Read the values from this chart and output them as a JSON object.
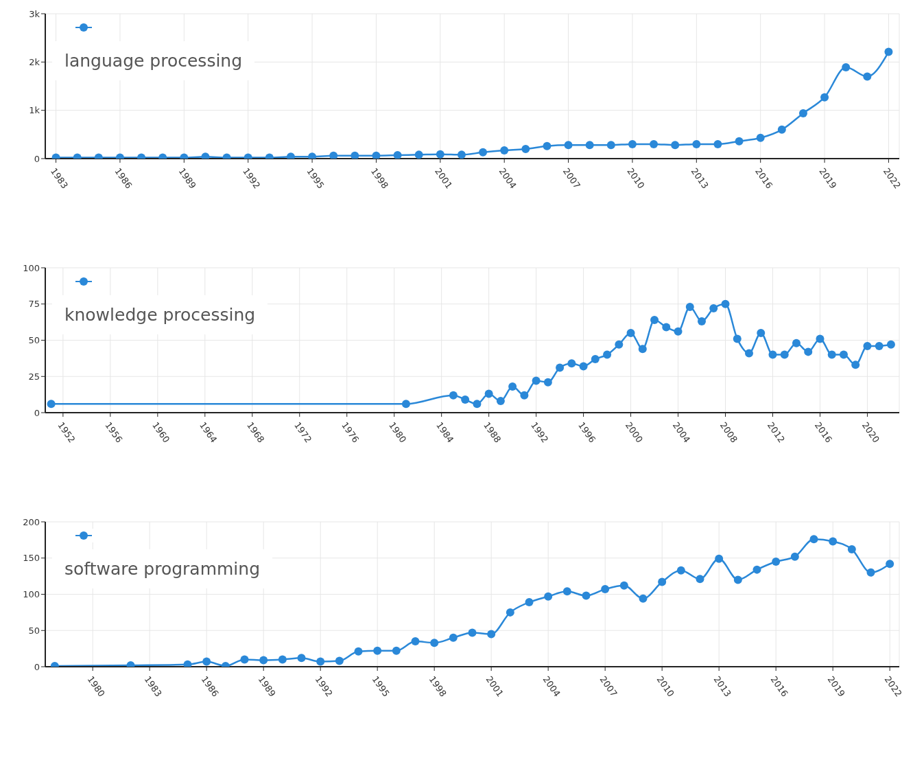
{
  "chart_data": [
    {
      "type": "line",
      "x": [
        1983,
        1984,
        1985,
        1986,
        1987,
        1988,
        1989,
        1990,
        1991,
        1992,
        1993,
        1994,
        1995,
        1996,
        1997,
        1998,
        1999,
        2000,
        2001,
        2002,
        2003,
        2004,
        2005,
        2006,
        2007,
        2008,
        2009,
        2010,
        2011,
        2012,
        2013,
        2014,
        2015,
        2016,
        2017,
        2018,
        2019,
        2020,
        2021,
        2022
      ],
      "series": [
        {
          "name": "language processing",
          "color": "#2a88d8",
          "values": [
            20,
            20,
            20,
            20,
            20,
            20,
            20,
            40,
            20,
            20,
            20,
            40,
            40,
            60,
            60,
            60,
            70,
            80,
            90,
            80,
            130,
            170,
            200,
            260,
            280,
            280,
            280,
            300,
            300,
            280,
            300,
            300,
            360,
            430,
            600,
            940,
            1270,
            1890,
            1700,
            2210
          ]
        }
      ],
      "xlim": [
        1982.5,
        2022.5
      ],
      "xticks": [
        1983,
        1986,
        1989,
        1992,
        1995,
        1998,
        2001,
        2004,
        2007,
        2010,
        2013,
        2016,
        2019,
        2022
      ],
      "ylim": [
        0,
        3000
      ],
      "yticks": [
        0,
        {
          "value": 1000,
          "label": "1k"
        },
        {
          "value": 2000,
          "label": "2k"
        },
        {
          "value": 3000,
          "label": "3k"
        }
      ],
      "grid": true,
      "legend": "top left",
      "marker": "circle"
    },
    {
      "type": "line",
      "x": [
        1951,
        1981,
        1985,
        1986,
        1987,
        1988,
        1989,
        1990,
        1991,
        1992,
        1993,
        1994,
        1995,
        1996,
        1997,
        1998,
        1999,
        2000,
        2001,
        2002,
        2003,
        2004,
        2005,
        2006,
        2007,
        2008,
        2009,
        2010,
        2011,
        2012,
        2013,
        2014,
        2015,
        2016,
        2017,
        2018,
        2019,
        2020,
        2021,
        2022
      ],
      "series": [
        {
          "name": "knowledge processing",
          "color": "#2a88d8",
          "values": [
            6,
            6,
            12,
            9,
            6,
            13,
            8,
            18,
            12,
            22,
            21,
            31,
            34,
            32,
            37,
            40,
            47,
            55,
            44,
            64,
            59,
            56,
            73,
            63,
            72,
            75,
            51,
            41,
            55,
            40,
            40,
            48,
            42,
            51,
            40,
            40,
            33,
            46,
            46,
            47
          ]
        }
      ],
      "xlim": [
        1950.5,
        2022.7
      ],
      "xticks": [
        1952,
        1956,
        1960,
        1964,
        1968,
        1972,
        1976,
        1980,
        1984,
        1988,
        1992,
        1996,
        2000,
        2004,
        2008,
        2012,
        2016,
        2020
      ],
      "ylim": [
        0,
        100
      ],
      "yticks": [
        0,
        25,
        50,
        75,
        100
      ],
      "grid": true,
      "legend": "top left",
      "marker": "circle"
    },
    {
      "type": "line",
      "x": [
        1978,
        1982,
        1985,
        1986,
        1987,
        1988,
        1989,
        1990,
        1991,
        1992,
        1993,
        1994,
        1995,
        1996,
        1997,
        1998,
        1999,
        2000,
        2001,
        2002,
        2003,
        2004,
        2005,
        2006,
        2007,
        2008,
        2009,
        2010,
        2011,
        2012,
        2013,
        2014,
        2015,
        2016,
        2017,
        2018,
        2019,
        2020,
        2021,
        2022
      ],
      "series": [
        {
          "name": "software programming",
          "color": "#2a88d8",
          "values": [
            1,
            2,
            3,
            7,
            1,
            10,
            9,
            10,
            12,
            7,
            8,
            21,
            22,
            22,
            35,
            33,
            40,
            47,
            45,
            75,
            89,
            97,
            104,
            98,
            107,
            112,
            94,
            117,
            133,
            121,
            149,
            120,
            134,
            145,
            152,
            176,
            173,
            162,
            130,
            142
          ]
        }
      ],
      "xlim": [
        1977.5,
        2022.5
      ],
      "xticks": [
        1980,
        1983,
        1986,
        1989,
        1992,
        1995,
        1998,
        2001,
        2004,
        2007,
        2010,
        2013,
        2016,
        2019,
        2022
      ],
      "ylim": [
        0,
        200
      ],
      "yticks": [
        0,
        50,
        100,
        150,
        200
      ],
      "grid": true,
      "legend": "top left",
      "marker": "circle"
    }
  ]
}
